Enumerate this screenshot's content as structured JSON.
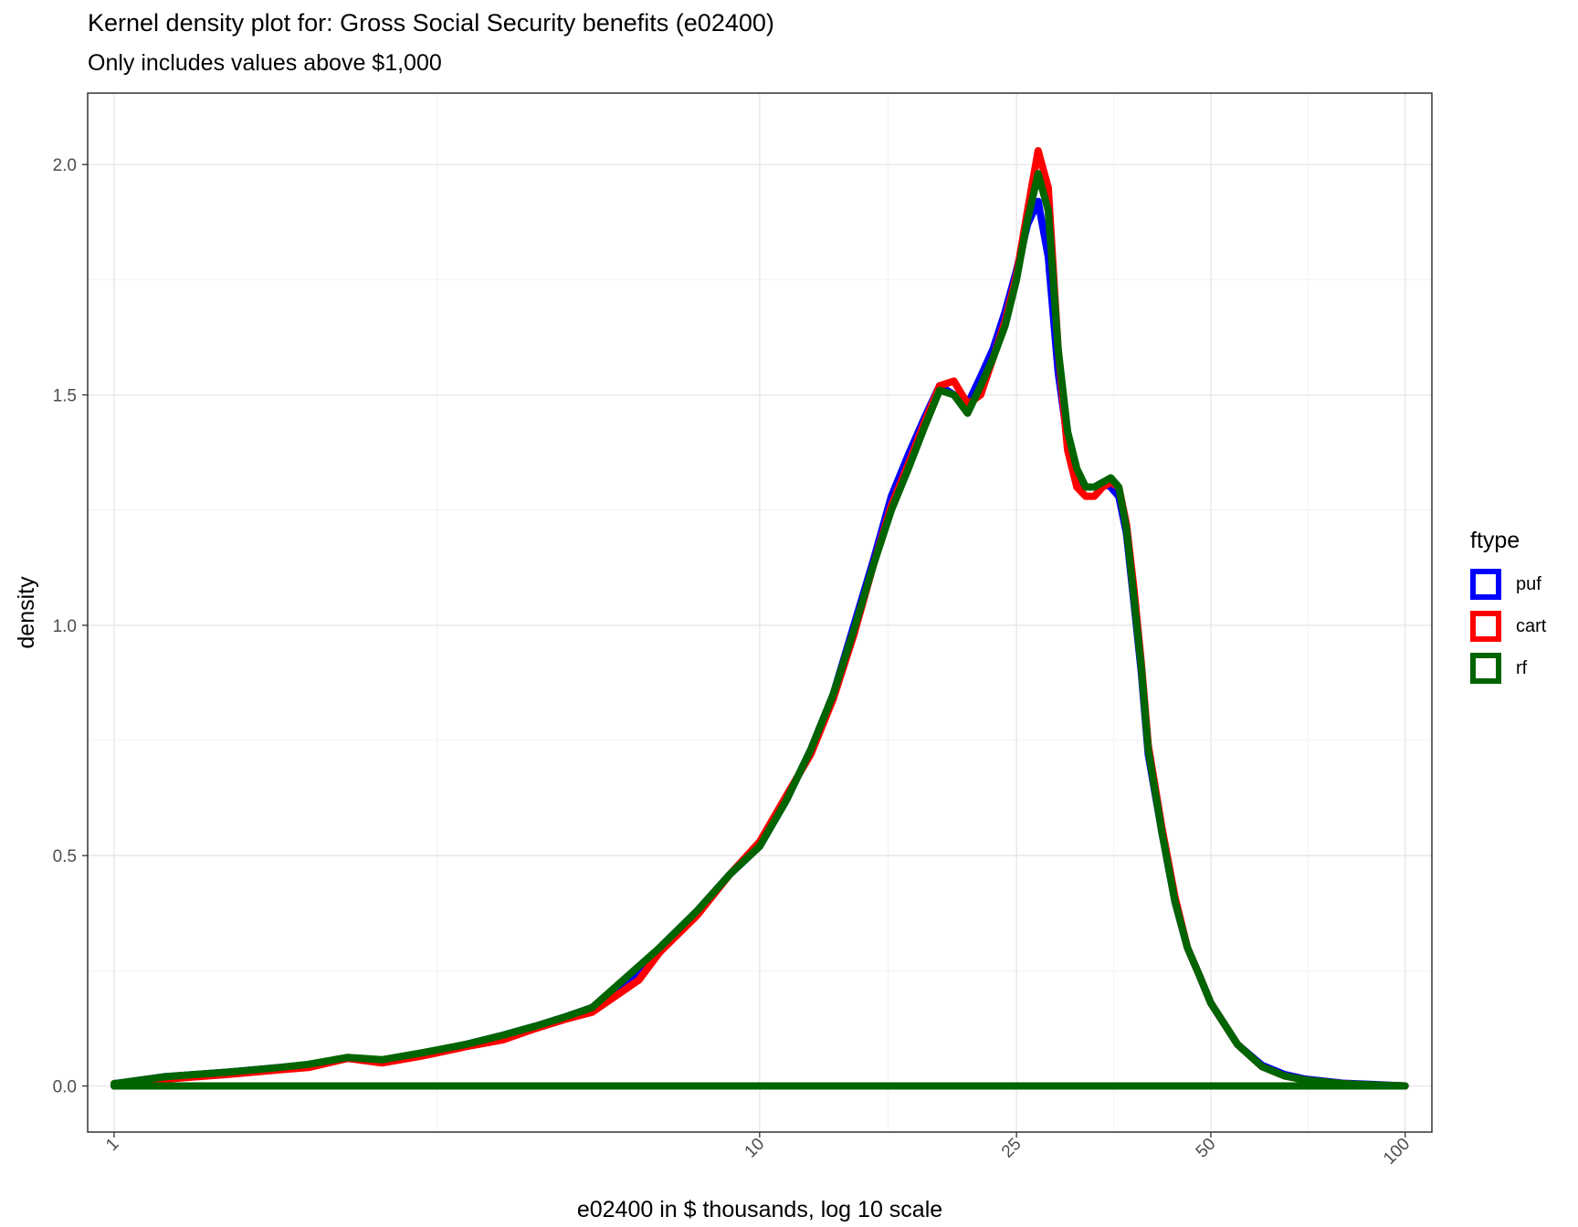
{
  "chart_data": {
    "type": "line",
    "title": "Kernel density plot for: Gross Social Security benefits (e02400)",
    "subtitle": "Only includes values above $1,000",
    "xlabel": "e02400 in $ thousands, log 10 scale",
    "ylabel": "density",
    "x_scale": "log10",
    "xlim": [
      0.91,
      110
    ],
    "ylim": [
      -0.1,
      2.155
    ],
    "x_ticks": [
      1,
      10,
      25,
      50,
      100
    ],
    "x_tick_labels": [
      "1",
      "10",
      "25",
      "50",
      "100"
    ],
    "y_ticks": [
      0.0,
      0.5,
      1.0,
      1.5,
      2.0
    ],
    "y_tick_labels": [
      "0.0",
      "0.5",
      "1.0",
      "1.5",
      "2.0"
    ],
    "grid": true,
    "legend_title": "ftype",
    "legend_position": "right",
    "series": [
      {
        "name": "puf",
        "color": "#0000FF",
        "x": [
          1,
          1.2,
          1.5,
          1.8,
          2.0,
          2.3,
          2.6,
          3.0,
          3.5,
          4.0,
          4.5,
          5.0,
          5.5,
          6.5,
          7.0,
          8.0,
          9.0,
          10.0,
          11.0,
          12.0,
          13.0,
          14.0,
          15.0,
          16.0,
          17.0,
          18.0,
          19.0,
          20.0,
          21.0,
          22.0,
          23.0,
          24.0,
          25.0,
          26.0,
          27.0,
          28.0,
          29.0,
          30.0,
          31.0,
          32.0,
          33.0,
          34.0,
          35.0,
          36.0,
          37.0,
          38.0,
          39.0,
          40.0,
          42.0,
          44.0,
          46.0,
          48.0,
          50.0,
          55.0,
          60.0,
          65.0,
          70.0,
          80.0,
          90.0,
          100.0
        ],
        "y": [
          0.005,
          0.02,
          0.03,
          0.04,
          0.045,
          0.06,
          0.055,
          0.07,
          0.09,
          0.11,
          0.13,
          0.15,
          0.17,
          0.25,
          0.3,
          0.38,
          0.46,
          0.52,
          0.62,
          0.73,
          0.85,
          1.0,
          1.14,
          1.28,
          1.37,
          1.45,
          1.52,
          1.5,
          1.48,
          1.54,
          1.6,
          1.68,
          1.77,
          1.87,
          1.92,
          1.8,
          1.55,
          1.4,
          1.33,
          1.3,
          1.3,
          1.31,
          1.3,
          1.28,
          1.2,
          1.05,
          0.9,
          0.72,
          0.55,
          0.4,
          0.3,
          0.24,
          0.18,
          0.09,
          0.045,
          0.025,
          0.015,
          0.006,
          0.003,
          0.0
        ]
      },
      {
        "name": "cart",
        "color": "#FF0000",
        "x": [
          1,
          1.2,
          1.5,
          1.8,
          2.0,
          2.3,
          2.6,
          3.0,
          3.5,
          4.0,
          4.5,
          5.0,
          5.5,
          6.5,
          7.0,
          8.0,
          9.0,
          10.0,
          11.0,
          12.0,
          13.0,
          14.0,
          15.0,
          16.0,
          17.0,
          18.0,
          19.0,
          20.0,
          21.0,
          22.0,
          23.0,
          24.0,
          25.0,
          26.0,
          27.0,
          28.0,
          29.0,
          30.0,
          31.0,
          32.0,
          33.0,
          34.0,
          35.0,
          36.0,
          37.0,
          38.0,
          39.0,
          40.0,
          42.0,
          44.0,
          46.0,
          48.0,
          50.0,
          55.0,
          60.0,
          65.0,
          70.0,
          80.0,
          90.0,
          100.0
        ],
        "y": [
          0.005,
          0.015,
          0.025,
          0.035,
          0.04,
          0.06,
          0.05,
          0.065,
          0.085,
          0.1,
          0.125,
          0.145,
          0.16,
          0.23,
          0.29,
          0.37,
          0.46,
          0.53,
          0.63,
          0.72,
          0.84,
          0.98,
          1.13,
          1.26,
          1.35,
          1.44,
          1.52,
          1.53,
          1.48,
          1.5,
          1.58,
          1.66,
          1.76,
          1.9,
          2.03,
          1.95,
          1.6,
          1.38,
          1.3,
          1.28,
          1.28,
          1.3,
          1.31,
          1.3,
          1.22,
          1.08,
          0.92,
          0.74,
          0.56,
          0.41,
          0.3,
          0.24,
          0.18,
          0.09,
          0.042,
          0.022,
          0.013,
          0.005,
          0.002,
          0.0
        ]
      },
      {
        "name": "rf",
        "color": "#006400",
        "x": [
          1,
          1.2,
          1.5,
          1.8,
          2.0,
          2.3,
          2.6,
          3.0,
          3.5,
          4.0,
          4.5,
          5.0,
          5.5,
          6.5,
          7.0,
          8.0,
          9.0,
          10.0,
          11.0,
          12.0,
          13.0,
          14.0,
          15.0,
          16.0,
          17.0,
          18.0,
          19.0,
          20.0,
          21.0,
          22.0,
          23.0,
          24.0,
          25.0,
          26.0,
          27.0,
          28.0,
          29.0,
          30.0,
          31.0,
          32.0,
          33.0,
          34.0,
          35.0,
          36.0,
          37.0,
          38.0,
          39.0,
          40.0,
          42.0,
          44.0,
          46.0,
          48.0,
          50.0,
          55.0,
          60.0,
          65.0,
          70.0,
          80.0,
          90.0,
          100.0
        ],
        "y": [
          0.005,
          0.02,
          0.03,
          0.04,
          0.047,
          0.062,
          0.057,
          0.072,
          0.09,
          0.11,
          0.13,
          0.15,
          0.17,
          0.26,
          0.3,
          0.38,
          0.46,
          0.52,
          0.62,
          0.73,
          0.85,
          0.99,
          1.13,
          1.25,
          1.34,
          1.43,
          1.51,
          1.5,
          1.46,
          1.52,
          1.58,
          1.65,
          1.75,
          1.88,
          1.98,
          1.9,
          1.6,
          1.42,
          1.34,
          1.3,
          1.3,
          1.31,
          1.32,
          1.3,
          1.21,
          1.06,
          0.91,
          0.73,
          0.55,
          0.4,
          0.3,
          0.24,
          0.18,
          0.09,
          0.042,
          0.022,
          0.013,
          0.005,
          0.002,
          0.0
        ]
      }
    ]
  }
}
